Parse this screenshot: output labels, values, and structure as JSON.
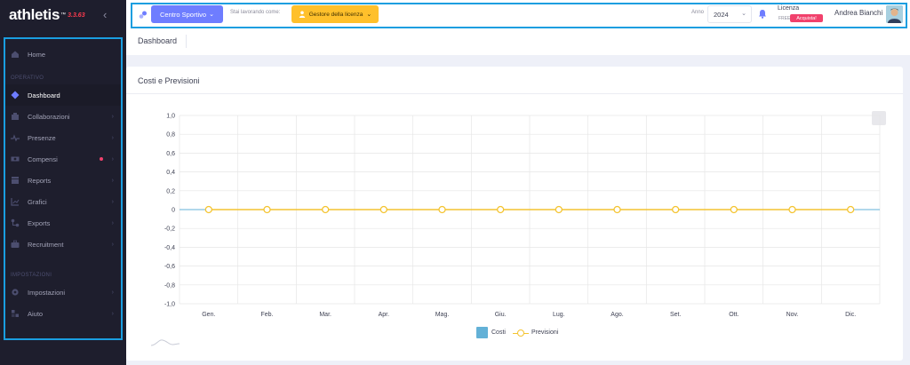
{
  "brand": {
    "name": "athletis",
    "tm": "™",
    "version": "3.3.63"
  },
  "sidebar": {
    "items": [
      {
        "label": "Home",
        "icon": "home-icon"
      },
      {
        "section": "OPERATIVO"
      },
      {
        "label": "Dashboard",
        "icon": "diamond-icon",
        "active": true
      },
      {
        "label": "Collaborazioni",
        "icon": "collab-icon",
        "arrow": "›"
      },
      {
        "label": "Presenze",
        "icon": "pulse-icon",
        "arrow": "›"
      },
      {
        "label": "Compensi",
        "icon": "money-icon",
        "arrow": "›",
        "badge_color": "#f1416c"
      },
      {
        "label": "Reports",
        "icon": "reports-icon",
        "arrow": "›"
      },
      {
        "label": "Grafici",
        "icon": "chart-icon",
        "arrow": "›"
      },
      {
        "label": "Exports",
        "icon": "exports-icon",
        "arrow": "›"
      },
      {
        "label": "Recruitment",
        "icon": "recruitment-icon",
        "arrow": "›"
      },
      {
        "section": "IMPOSTAZIONI"
      },
      {
        "label": "Impostazioni",
        "icon": "gear-icon",
        "arrow": "›"
      },
      {
        "label": "Aiuto",
        "icon": "help-icon",
        "arrow": "›"
      }
    ]
  },
  "header": {
    "centro_label": "Centro Sportivo",
    "working_as": "Stai lavorando come:",
    "role_label": "Gestore della licenza",
    "anno_label": "Anno",
    "anno_value": "2024",
    "licenza_label": "Licenza",
    "licenza_tier": "FREE",
    "licenza_button": "Acquista!",
    "user_name": "Andrea Bianchi"
  },
  "page": {
    "title": "Dashboard"
  },
  "card": {
    "title": "Costi e Previsioni"
  },
  "colors": {
    "accent": "#6e7dff",
    "warning": "#ffc02b",
    "danger": "#f1416c",
    "costi": "#63b1d7",
    "previsioni": "#f4c430"
  },
  "chart_data": {
    "type": "line",
    "categories": [
      "Gen.",
      "Feb.",
      "Mar.",
      "Apr.",
      "Mag.",
      "Giu.",
      "Lug.",
      "Ago.",
      "Set.",
      "Ott.",
      "Nov.",
      "Dic."
    ],
    "yticks": [
      "1,0",
      "0,8",
      "0,6",
      "0,4",
      "0,2",
      "0",
      "-0,2",
      "-0,4",
      "-0,6",
      "-0,8",
      "-1,0"
    ],
    "ylim": [
      -1,
      1
    ],
    "grid": true,
    "legend": "bottom",
    "series": [
      {
        "name": "Costi",
        "type": "bar",
        "values": [
          0,
          0,
          0,
          0,
          0,
          0,
          0,
          0,
          0,
          0,
          0,
          0
        ]
      },
      {
        "name": "Previsioni",
        "type": "line",
        "values": [
          0,
          0,
          0,
          0,
          0,
          0,
          0,
          0,
          0,
          0,
          0,
          0
        ]
      }
    ]
  }
}
